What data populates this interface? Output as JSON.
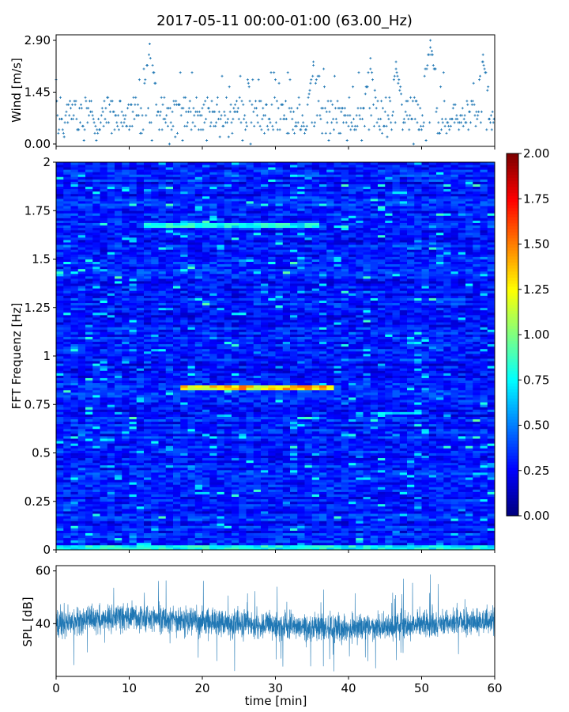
{
  "chart_data": [
    {
      "type": "scatter",
      "title": "2017-05-11 00:00-01:00 (63.00_Hz)",
      "ylabel": "Wind [m/s]",
      "xlim": [
        0,
        60
      ],
      "ylim": [
        0,
        2.9
      ],
      "yticks": [
        "0.00",
        "1.45",
        "2.90"
      ],
      "marker": "+",
      "color": "#1f77b4",
      "series": [
        {
          "x_range": [
            0,
            60
          ],
          "x_step": 0.1,
          "values_typical_range": [
            0.3,
            1.3
          ],
          "values_peak_range": [
            1.8,
            2.9
          ],
          "gust_peaks": [
            {
              "x": 12.8,
              "y": 2.8
            },
            {
              "x": 35.2,
              "y": 2.3
            },
            {
              "x": 43.0,
              "y": 2.4
            },
            {
              "x": 46.5,
              "y": 2.3
            },
            {
              "x": 51.2,
              "y": 2.9
            },
            {
              "x": 58.4,
              "y": 2.5
            }
          ]
        }
      ]
    },
    {
      "type": "heatmap",
      "ylabel": "FFT Frequenz [Hz]",
      "xlim": [
        0,
        60
      ],
      "ylim": [
        0,
        2
      ],
      "yticks": [
        "0",
        "0.25",
        "0.5",
        "0.75",
        "1",
        "1.25",
        "1.5",
        "1.75",
        "2"
      ],
      "colormap": "jet",
      "colorbar": {
        "range": [
          0,
          2
        ],
        "ticks": [
          "0.00",
          "0.25",
          "0.50",
          "0.75",
          "1.00",
          "1.25",
          "1.50",
          "1.75",
          "2.00"
        ]
      },
      "background_level_range": [
        0.1,
        0.5
      ],
      "features": [
        {
          "freq": 0.83,
          "x_start": 17,
          "x_end": 38,
          "level": 1.55,
          "description": "horizontal band"
        },
        {
          "freq": 1.67,
          "x_start": 12,
          "x_end": 36,
          "level": 0.9
        },
        {
          "freq": 0.01,
          "x_start": 0,
          "x_end": 60,
          "level": 0.9
        },
        {
          "freq": 0.7,
          "x_start": 43,
          "x_end": 50,
          "level": 0.8
        }
      ]
    },
    {
      "type": "line",
      "xlabel": "time [min]",
      "ylabel": "SPL [dB]",
      "xlim": [
        0,
        60
      ],
      "ylim": [
        20,
        62
      ],
      "yticks": [
        "40",
        "60"
      ],
      "xticks": [
        "0",
        "10",
        "20",
        "30",
        "40",
        "50",
        "60"
      ],
      "color": "#1f77b4",
      "series": [
        {
          "mean_profile": [
            [
              0,
              40
            ],
            [
              10,
              43
            ],
            [
              20,
              41
            ],
            [
              30,
              39
            ],
            [
              40,
              38
            ],
            [
              50,
              40
            ],
            [
              60,
              41
            ]
          ],
          "band_range": [
            28,
            52
          ],
          "extreme_range": [
            22,
            60
          ]
        }
      ]
    }
  ]
}
